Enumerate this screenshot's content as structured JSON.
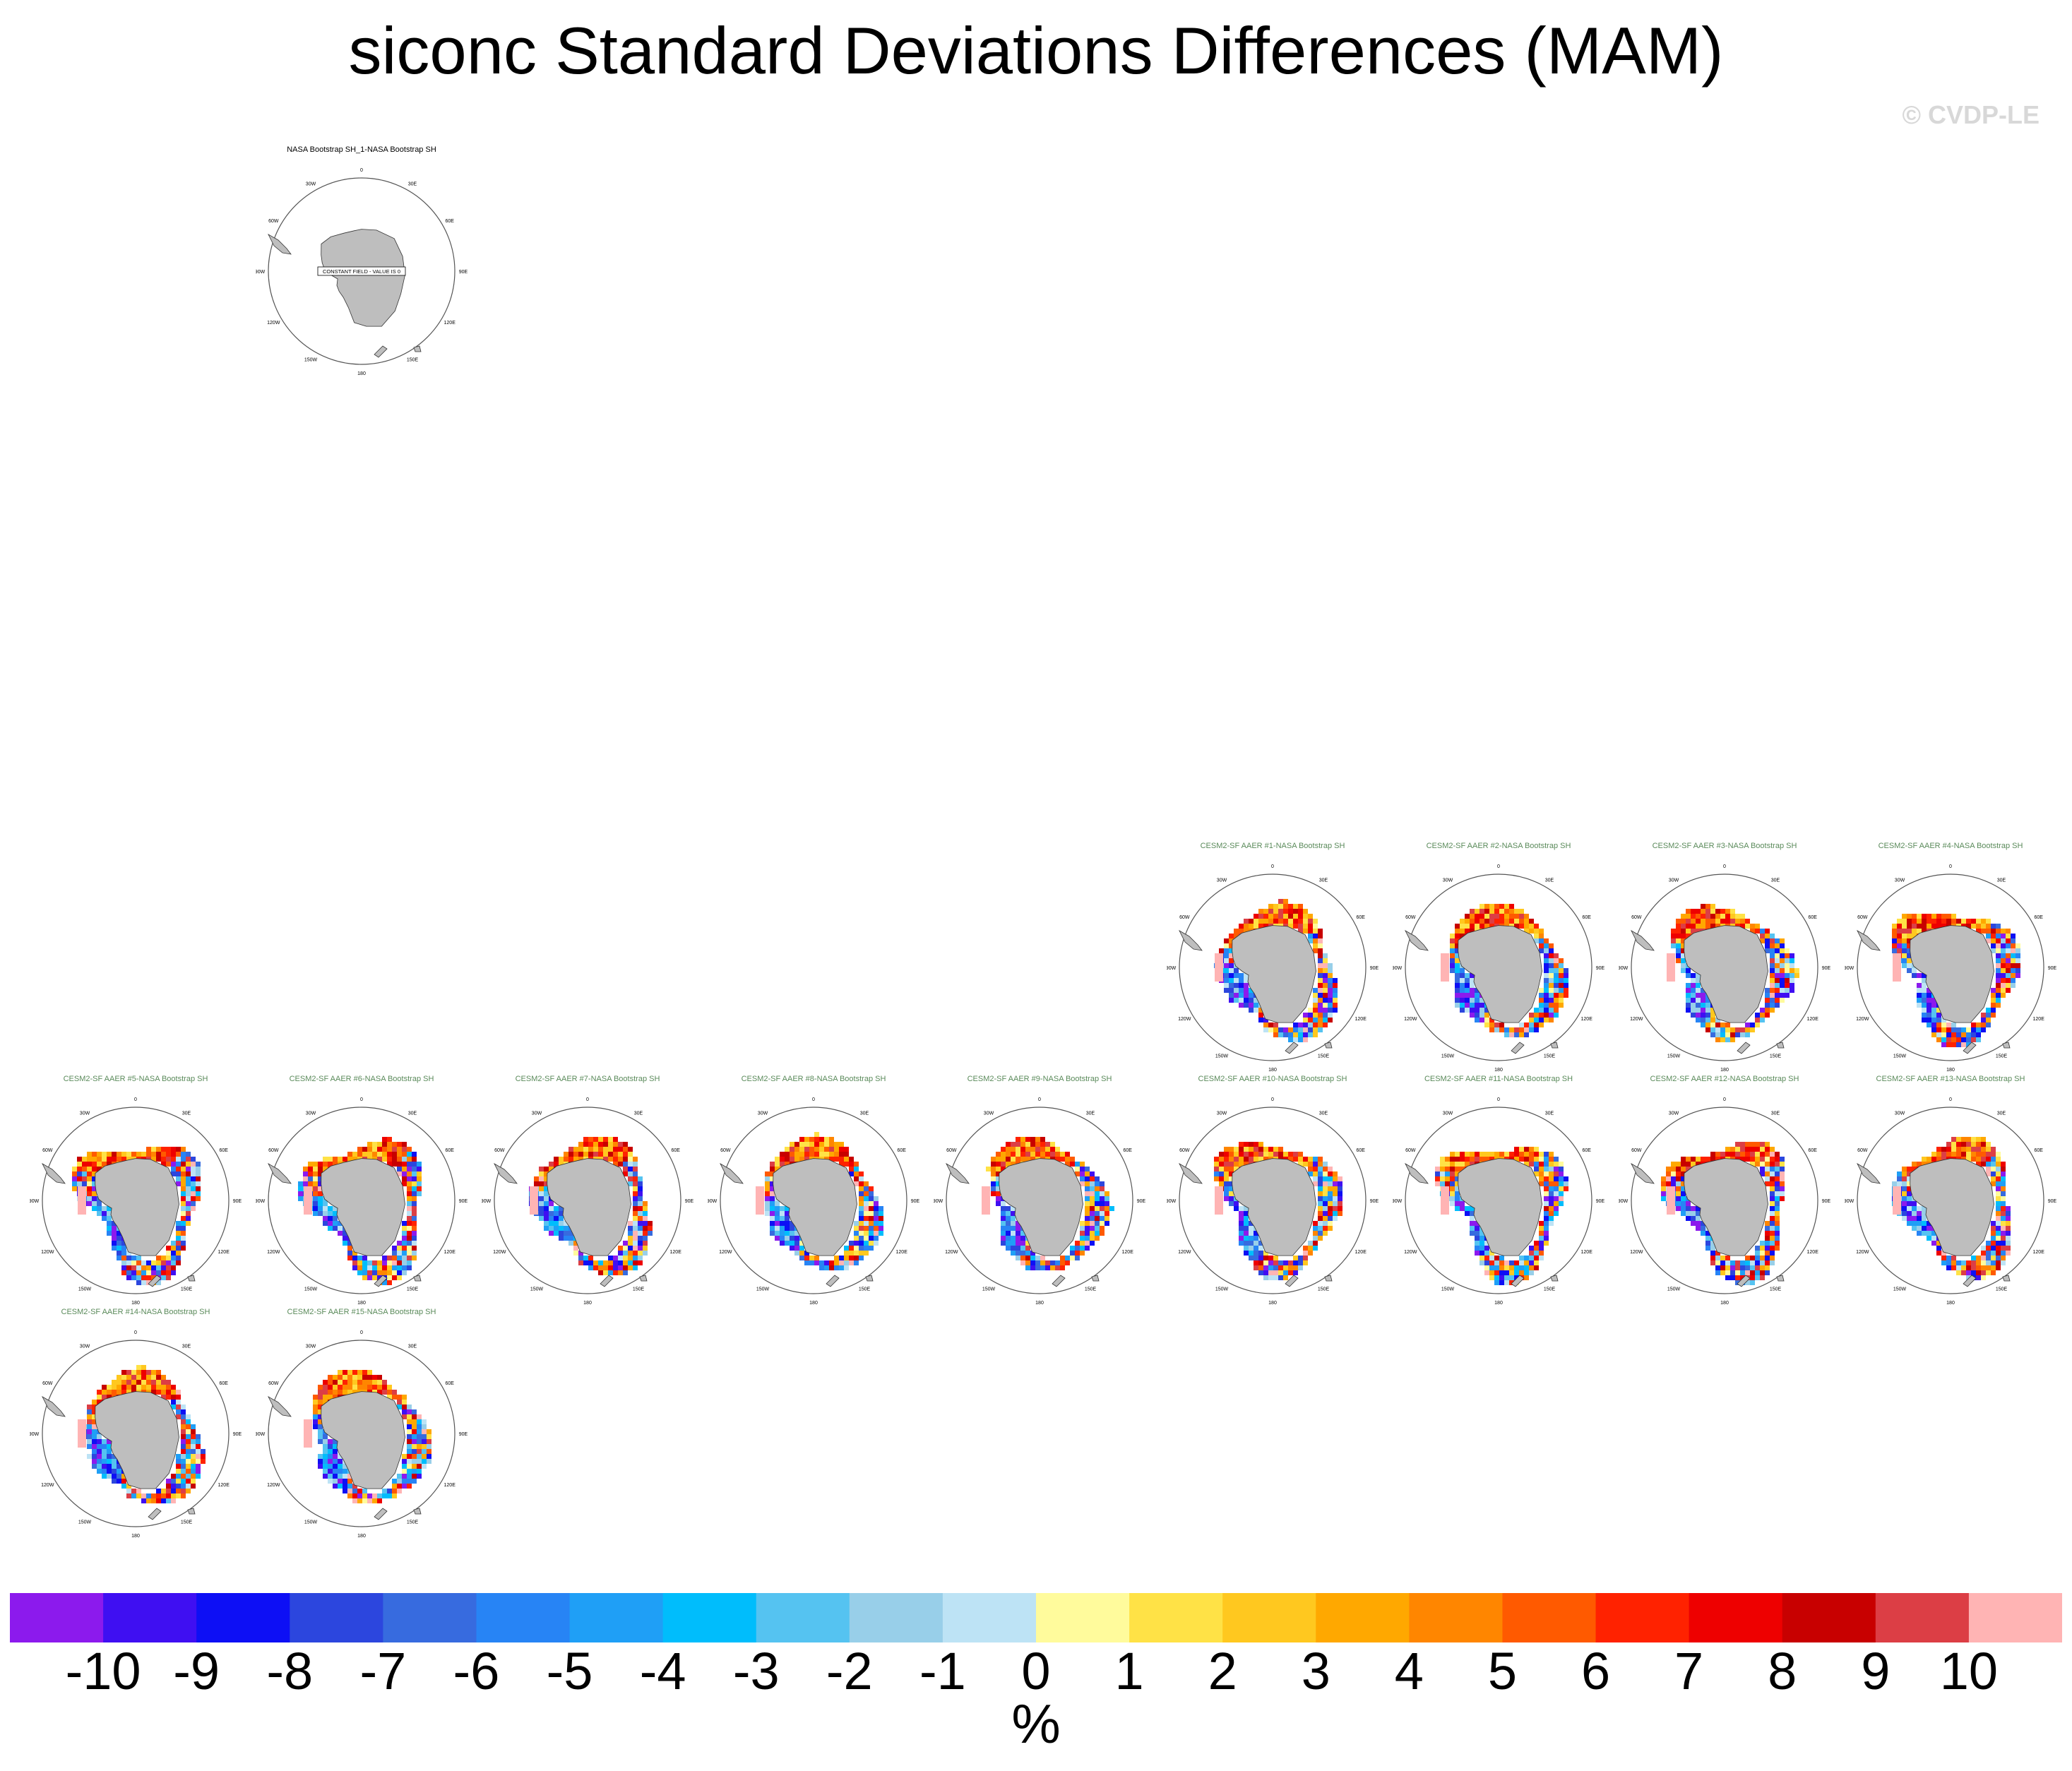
{
  "title": "siconc Standard Deviations Differences (MAM)",
  "watermark": "© CVDP-LE",
  "units": "%",
  "colors": {
    "land": "#bebebe",
    "observation_title": "#000000",
    "model_title": "#5a8a5a",
    "missing": "#ffb4b4"
  },
  "lon_labels": [
    "0",
    "30E",
    "60E",
    "90E",
    "120E",
    "150E",
    "180",
    "150W",
    "120W",
    "90W",
    "60W",
    "30W"
  ],
  "colorbar": {
    "colors": [
      "#8c1aed",
      "#3f0ff2",
      "#0d0ff5",
      "#2c46de",
      "#376bdf",
      "#2784f5",
      "#1f9ff6",
      "#00bdfc",
      "#55c3f1",
      "#98cfe9",
      "#bde3f5",
      "#fffb9c",
      "#ffe246",
      "#ffc81f",
      "#ffa800",
      "#ff8600",
      "#ff5a00",
      "#ff2200",
      "#ee0000",
      "#c80000",
      "#dc3e45",
      "#ffb4b4"
    ],
    "labels": [
      "-10",
      "-9",
      "-8",
      "-7",
      "-6",
      "-5",
      "-4",
      "-3",
      "-2",
      "-1",
      "0",
      "1",
      "2",
      "3",
      "4",
      "5",
      "6",
      "7",
      "8",
      "9",
      "10"
    ]
  },
  "panels": [
    {
      "title": "NASA Bootstrap SH_1-NASA Bootstrap SH",
      "constant_field": true,
      "note": "CONSTANT FIELD - VALUE IS 0"
    },
    {
      "title": "CESM2-SF AAER #1-NASA Bootstrap SH",
      "constant_field": false
    },
    {
      "title": "CESM2-SF AAER #2-NASA Bootstrap SH",
      "constant_field": false
    },
    {
      "title": "CESM2-SF AAER #3-NASA Bootstrap SH",
      "constant_field": false
    },
    {
      "title": "CESM2-SF AAER #4-NASA Bootstrap SH",
      "constant_field": false
    },
    {
      "title": "CESM2-SF AAER #5-NASA Bootstrap SH",
      "constant_field": false
    },
    {
      "title": "CESM2-SF AAER #6-NASA Bootstrap SH",
      "constant_field": false
    },
    {
      "title": "CESM2-SF AAER #7-NASA Bootstrap SH",
      "constant_field": false
    },
    {
      "title": "CESM2-SF AAER #8-NASA Bootstrap SH",
      "constant_field": false
    },
    {
      "title": "CESM2-SF AAER #9-NASA Bootstrap SH",
      "constant_field": false
    },
    {
      "title": "CESM2-SF AAER #10-NASA Bootstrap SH",
      "constant_field": false
    },
    {
      "title": "CESM2-SF AAER #11-NASA Bootstrap SH",
      "constant_field": false
    },
    {
      "title": "CESM2-SF AAER #12-NASA Bootstrap SH",
      "constant_field": false
    },
    {
      "title": "CESM2-SF AAER #13-NASA Bootstrap SH",
      "constant_field": false
    },
    {
      "title": "CESM2-SF AAER #14-NASA Bootstrap SH",
      "constant_field": false
    },
    {
      "title": "CESM2-SF AAER #15-NASA Bootstrap SH",
      "constant_field": false
    }
  ]
}
